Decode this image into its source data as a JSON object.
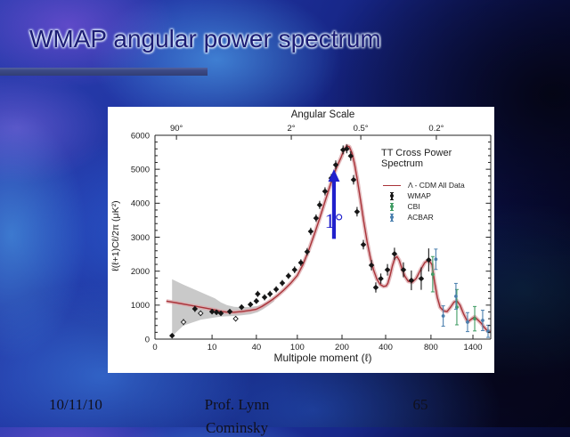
{
  "slide": {
    "title": "WMAP angular power spectrum",
    "footer": {
      "date": "10/11/10",
      "author_line1": "Prof. Lynn",
      "author_line2": "Cominsky",
      "slide_number": "65"
    }
  },
  "colors": {
    "title_text": "#1c1c74",
    "title_rule": "#3c4a86",
    "panel": "#ffffff",
    "curve": "#a93238",
    "curve_band": "#dba8ac",
    "variance_band": "#c9c9c9",
    "axis_text": "#1a1a1a"
  },
  "chart_data": {
    "type": "line",
    "top_axis_title": "Angular Scale",
    "top_ticks": {
      "labels": [
        "90°",
        "2°",
        "0.5°",
        "0.2°"
      ],
      "fractions": [
        0.064,
        0.406,
        0.613,
        0.838
      ]
    },
    "xlabel": "Multipole moment (ℓ)",
    "ylabel": "ℓ(ℓ+1)Cℓ/2π (μK²)",
    "ylim": [
      0,
      6000
    ],
    "y_major_step": 1000,
    "y_minor_step": 200,
    "x_ticks": {
      "values": [
        "0",
        "10",
        "40",
        "100",
        "200",
        "400",
        "800",
        "1400"
      ],
      "fractions": [
        0,
        0.17,
        0.302,
        0.424,
        0.557,
        0.687,
        0.822,
        0.947
      ]
    },
    "x_scale": {
      "l": [
        0,
        10,
        40,
        100,
        200,
        400,
        800,
        1400,
        1700
      ],
      "frac": [
        0,
        0.17,
        0.302,
        0.424,
        0.557,
        0.687,
        0.822,
        0.947,
        1.0
      ]
    },
    "legend": {
      "title_line1": "TT Cross Power",
      "title_line2": "Spectrum",
      "items": [
        {
          "label": "Λ - CDM All Data",
          "color": "#a93238",
          "type": "line"
        },
        {
          "label": "WMAP",
          "color": "#161616",
          "type": "point"
        },
        {
          "label": "CBI",
          "color": "#3f9b63",
          "type": "point"
        },
        {
          "label": "ACBAR",
          "color": "#4a7fae",
          "type": "point"
        }
      ]
    },
    "annotation": {
      "text": "1°",
      "color": "#2020cc",
      "l": 182,
      "v_from": 2950,
      "v_to": 5000
    },
    "model_curve": [
      [
        2,
        1120
      ],
      [
        4,
        1060
      ],
      [
        6,
        1000
      ],
      [
        9,
        910
      ],
      [
        12,
        860
      ],
      [
        16,
        815
      ],
      [
        20,
        795
      ],
      [
        25,
        790
      ],
      [
        30,
        810
      ],
      [
        36,
        845
      ],
      [
        40,
        880
      ],
      [
        48,
        960
      ],
      [
        56,
        1060
      ],
      [
        64,
        1170
      ],
      [
        72,
        1300
      ],
      [
        80,
        1440
      ],
      [
        90,
        1640
      ],
      [
        100,
        1870
      ],
      [
        112,
        2180
      ],
      [
        125,
        2600
      ],
      [
        138,
        3080
      ],
      [
        150,
        3550
      ],
      [
        162,
        4050
      ],
      [
        174,
        4550
      ],
      [
        186,
        5000
      ],
      [
        198,
        5350
      ],
      [
        210,
        5580
      ],
      [
        222,
        5690
      ],
      [
        234,
        5660
      ],
      [
        246,
        5470
      ],
      [
        258,
        5140
      ],
      [
        270,
        4710
      ],
      [
        285,
        4090
      ],
      [
        300,
        3450
      ],
      [
        315,
        2870
      ],
      [
        330,
        2400
      ],
      [
        345,
        2030
      ],
      [
        360,
        1760
      ],
      [
        375,
        1610
      ],
      [
        390,
        1550
      ],
      [
        405,
        1565
      ],
      [
        420,
        1645
      ],
      [
        440,
        1880
      ],
      [
        460,
        2160
      ],
      [
        480,
        2370
      ],
      [
        500,
        2430
      ],
      [
        520,
        2320
      ],
      [
        545,
        2070
      ],
      [
        570,
        1850
      ],
      [
        600,
        1700
      ],
      [
        635,
        1675
      ],
      [
        670,
        1790
      ],
      [
        710,
        2050
      ],
      [
        745,
        2250
      ],
      [
        780,
        2330
      ],
      [
        815,
        2190
      ],
      [
        850,
        1700
      ],
      [
        890,
        1230
      ],
      [
        930,
        940
      ],
      [
        980,
        830
      ],
      [
        1030,
        810
      ],
      [
        1080,
        940
      ],
      [
        1130,
        1090
      ],
      [
        1170,
        1125
      ],
      [
        1215,
        1000
      ],
      [
        1265,
        750
      ],
      [
        1325,
        505
      ],
      [
        1380,
        590
      ],
      [
        1430,
        655
      ],
      [
        1485,
        560
      ],
      [
        1540,
        470
      ],
      [
        1585,
        360
      ],
      [
        1635,
        260
      ],
      [
        1700,
        210
      ]
    ],
    "variance_band": {
      "l": [
        3,
        5,
        8,
        12,
        16,
        20,
        25,
        30,
        36,
        42,
        50,
        58,
        66
      ],
      "upper": [
        1760,
        1600,
        1380,
        1200,
        1080,
        1000,
        950,
        940,
        950,
        975,
        1040,
        1125,
        1230
      ],
      "lower": [
        90,
        400,
        570,
        640,
        660,
        670,
        680,
        700,
        730,
        790,
        880,
        990,
        1110
      ]
    },
    "series": [
      {
        "name": "WMAP",
        "color": "#161616",
        "marker": "diamond",
        "points": [
          [
            3,
            100,
            70
          ],
          [
            5,
            500,
            90,
            "o"
          ],
          [
            7,
            890,
            90
          ],
          [
            8,
            760,
            80,
            "o"
          ],
          [
            10,
            810,
            80
          ],
          [
            13,
            790,
            80
          ],
          [
            16,
            760,
            80
          ],
          [
            22,
            810,
            80
          ],
          [
            26,
            600,
            80,
            "o"
          ],
          [
            30,
            940,
            80
          ],
          [
            36,
            1020,
            80
          ],
          [
            40,
            1120,
            80
          ],
          [
            42,
            1330,
            90
          ],
          [
            52,
            1230,
            90
          ],
          [
            60,
            1330,
            90
          ],
          [
            69,
            1465,
            90
          ],
          [
            78,
            1650,
            90
          ],
          [
            87,
            1860,
            90
          ],
          [
            96,
            2040,
            100
          ],
          [
            108,
            2250,
            100
          ],
          [
            122,
            2570,
            110
          ],
          [
            130,
            3170,
            110
          ],
          [
            142,
            3560,
            110
          ],
          [
            150,
            3950,
            120
          ],
          [
            162,
            4350,
            120
          ],
          [
            176,
            4740,
            120
          ],
          [
            186,
            5130,
            130
          ],
          [
            205,
            5570,
            130
          ],
          [
            222,
            5600,
            130
          ],
          [
            240,
            5390,
            140
          ],
          [
            253,
            4690,
            140
          ],
          [
            269,
            3750,
            140
          ],
          [
            298,
            2780,
            140
          ],
          [
            335,
            2175,
            150
          ],
          [
            355,
            1520,
            150
          ],
          [
            378,
            1780,
            150
          ],
          [
            416,
            2040,
            170
          ],
          [
            478,
            2510,
            180
          ],
          [
            557,
            2040,
            220
          ],
          [
            627,
            1730,
            290
          ],
          [
            714,
            1780,
            330
          ],
          [
            780,
            2330,
            340
          ]
        ]
      },
      {
        "name": "CBI",
        "color": "#3f9b63",
        "marker": "circle",
        "points": [
          [
            825,
            1910,
            520
          ],
          [
            1170,
            940,
            520
          ],
          [
            1430,
            600,
            360
          ]
        ]
      },
      {
        "name": "ACBAR",
        "color": "#4a7fae",
        "marker": "circle",
        "points": [
          [
            870,
            2350,
            300
          ],
          [
            975,
            680,
            300
          ],
          [
            1157,
            1260,
            380
          ],
          [
            1323,
            500,
            280
          ],
          [
            1564,
            550,
            300
          ],
          [
            1655,
            230,
            180
          ]
        ]
      }
    ]
  }
}
